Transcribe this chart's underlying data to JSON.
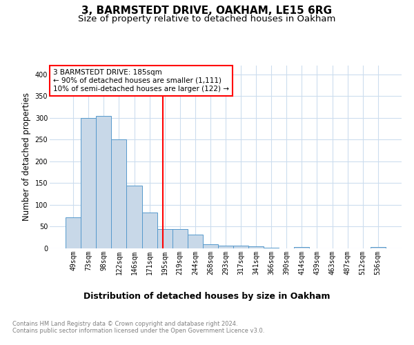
{
  "title": "3, BARMSTEDT DRIVE, OAKHAM, LE15 6RG",
  "subtitle": "Size of property relative to detached houses in Oakham",
  "xlabel": "Distribution of detached houses by size in Oakham",
  "ylabel": "Number of detached properties",
  "categories": [
    "49sqm",
    "73sqm",
    "98sqm",
    "122sqm",
    "146sqm",
    "171sqm",
    "195sqm",
    "219sqm",
    "244sqm",
    "268sqm",
    "293sqm",
    "317sqm",
    "341sqm",
    "366sqm",
    "390sqm",
    "414sqm",
    "439sqm",
    "463sqm",
    "487sqm",
    "512sqm",
    "536sqm"
  ],
  "values": [
    72,
    300,
    304,
    250,
    145,
    83,
    44,
    44,
    32,
    9,
    6,
    6,
    5,
    2,
    0,
    3,
    0,
    0,
    0,
    0,
    3
  ],
  "bar_color": "#c8d8e8",
  "bar_edge_color": "#5599cc",
  "grid_color": "#ccddee",
  "vline_x": 5.88,
  "vline_color": "red",
  "annotation_text": "3 BARMSTEDT DRIVE: 185sqm\n← 90% of detached houses are smaller (1,111)\n10% of semi-detached houses are larger (122) →",
  "annotation_box_color": "white",
  "annotation_box_edge_color": "red",
  "footer_text": "Contains HM Land Registry data © Crown copyright and database right 2024.\nContains public sector information licensed under the Open Government Licence v3.0.",
  "ylim": [
    0,
    420
  ],
  "title_fontsize": 11,
  "subtitle_fontsize": 9.5,
  "ylabel_fontsize": 8.5,
  "xlabel_fontsize": 9,
  "tick_fontsize": 7,
  "footer_fontsize": 6,
  "annotation_fontsize": 7.5
}
